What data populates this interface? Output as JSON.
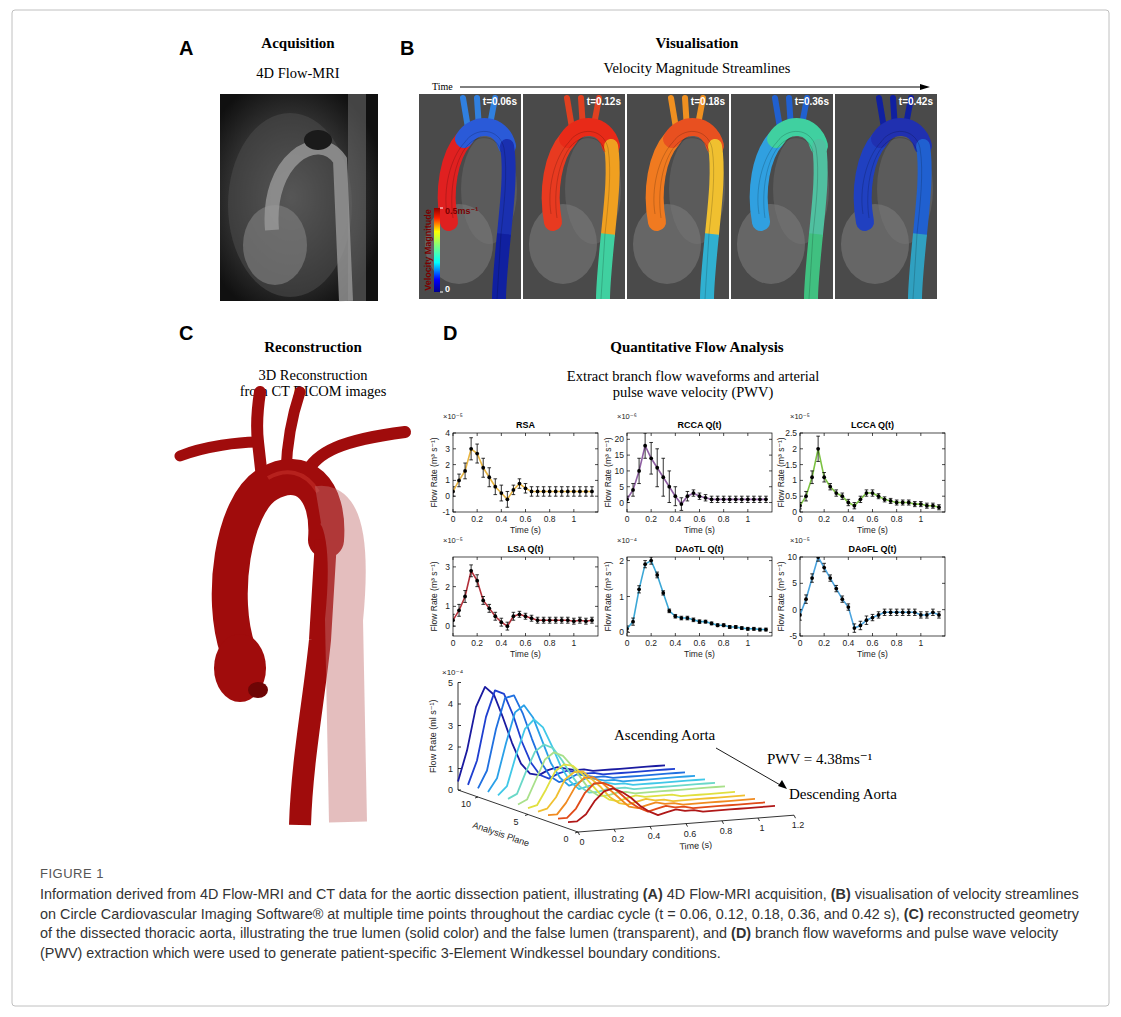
{
  "panels": {
    "a": {
      "letter": "A",
      "title": "Acquisition",
      "subtitle": "4D Flow-MRI"
    },
    "b": {
      "letter": "B",
      "title": "Visualisation",
      "subtitle": "Velocity Magnitude Streamlines",
      "time_label": "Time",
      "frames": [
        "t=0.06s",
        "t=0.12s",
        "t=0.18s",
        "t=0.36s",
        "t=0.42s"
      ],
      "colorbar": {
        "label": "Velocity Magnitude",
        "range": [
          0,
          0.5
        ],
        "ticks": [
          0,
          {
            "value": 0.5,
            "label": "0.5ms⁻¹"
          }
        ]
      }
    },
    "c": {
      "letter": "C",
      "title": "Reconstruction",
      "subtitle_lines": [
        "3D Reconstruction",
        "from CT DICOM images"
      ]
    },
    "d": {
      "letter": "D",
      "title": "Quantitative Flow Analysis",
      "subtitle_lines": [
        "Extract branch flow waveforms and arterial",
        "pulse wave velocity (PWV)"
      ]
    }
  },
  "chart_data": [
    {
      "type": "line",
      "title": "RSA",
      "x_label": "Time (s)",
      "y_label": "Flow Rate (m³ s⁻¹)",
      "y_scale_label": "×10⁻⁵",
      "color": "#e8b542",
      "marker": "circle",
      "x": [
        0,
        0.05,
        0.1,
        0.15,
        0.2,
        0.25,
        0.3,
        0.35,
        0.4,
        0.45,
        0.5,
        0.55,
        0.6,
        0.65,
        0.7,
        0.75,
        0.8,
        0.85,
        0.9,
        0.95,
        1,
        1.05,
        1.1,
        1.15
      ],
      "values": [
        0.3,
        1.0,
        1.6,
        3.0,
        2.7,
        1.8,
        1.2,
        0.6,
        0.2,
        -0.2,
        0.4,
        0.8,
        0.5,
        0.3,
        0.3,
        0.3,
        0.3,
        0.3,
        0.3,
        0.3,
        0.3,
        0.3,
        0.3,
        0.3
      ],
      "errors": [
        0.3,
        0.4,
        0.5,
        0.7,
        0.6,
        0.6,
        0.6,
        0.5,
        0.5,
        0.5,
        0.3,
        0.3,
        0.3,
        0.3,
        0.3,
        0.3,
        0.3,
        0.3,
        0.3,
        0.3,
        0.3,
        0.3,
        0.3,
        0.3
      ],
      "xlim": [
        0,
        1.2
      ],
      "xticks": [
        0,
        0.2,
        0.4,
        0.6,
        0.8,
        1
      ],
      "ylim": [
        -1,
        4
      ],
      "yticks": [
        -1,
        0,
        1,
        2,
        3,
        4
      ]
    },
    {
      "type": "line",
      "title": "RCCA Q(t)",
      "x_label": "Time (s)",
      "y_label": "Flow Rate (m³ s⁻¹)",
      "y_scale_label": "×10⁻⁶",
      "color": "#8e5ea2",
      "marker": "circle",
      "x": [
        0,
        0.05,
        0.1,
        0.15,
        0.2,
        0.25,
        0.3,
        0.35,
        0.4,
        0.45,
        0.5,
        0.55,
        0.6,
        0.65,
        0.7,
        0.75,
        0.8,
        0.85,
        0.9,
        0.95,
        1,
        1.05,
        1.1,
        1.15
      ],
      "values": [
        1,
        4,
        10,
        18,
        14,
        11,
        8,
        5,
        2,
        -0.5,
        2,
        3,
        2,
        1.5,
        1,
        1,
        1,
        1,
        1,
        1,
        1,
        1,
        1,
        1
      ],
      "errors": [
        1,
        2,
        4,
        4,
        5,
        6,
        6,
        5,
        3,
        2,
        1.5,
        1,
        1,
        1,
        1,
        1,
        1,
        1,
        1,
        1,
        1,
        1,
        1,
        1
      ],
      "xlim": [
        0,
        1.2
      ],
      "xticks": [
        0,
        0.2,
        0.4,
        0.6,
        0.8,
        1
      ],
      "ylim": [
        -3,
        22
      ],
      "yticks": [
        0,
        5,
        10,
        15,
        20
      ]
    },
    {
      "type": "line",
      "title": "LCCA Q(t)",
      "x_label": "Time (s)",
      "y_label": "Flow Rate (m³ s⁻¹)",
      "y_scale_label": "×10⁻⁵",
      "color": "#7cc242",
      "marker": "circle",
      "x": [
        0,
        0.05,
        0.1,
        0.15,
        0.2,
        0.25,
        0.3,
        0.35,
        0.4,
        0.45,
        0.5,
        0.55,
        0.6,
        0.65,
        0.7,
        0.75,
        0.8,
        0.85,
        0.9,
        0.95,
        1,
        1.05,
        1.1,
        1.15
      ],
      "values": [
        0.2,
        0.5,
        1.1,
        2.0,
        1.1,
        0.8,
        0.6,
        0.5,
        0.3,
        0.2,
        0.4,
        0.6,
        0.6,
        0.5,
        0.4,
        0.35,
        0.3,
        0.3,
        0.3,
        0.25,
        0.25,
        0.2,
        0.2,
        0.15
      ],
      "errors": [
        0.1,
        0.15,
        0.2,
        0.4,
        0.15,
        0.1,
        0.1,
        0.1,
        0.1,
        0.1,
        0.1,
        0.1,
        0.1,
        0.08,
        0.08,
        0.08,
        0.08,
        0.08,
        0.08,
        0.08,
        0.08,
        0.08,
        0.08,
        0.08
      ],
      "xlim": [
        0,
        1.2
      ],
      "xticks": [
        0,
        0.2,
        0.4,
        0.6,
        0.8,
        1
      ],
      "ylim": [
        0,
        2.5
      ],
      "yticks": [
        0,
        0.5,
        1,
        1.5,
        2,
        2.5
      ]
    },
    {
      "type": "line",
      "title": "LSA Q(t)",
      "x_label": "Time (s)",
      "y_label": "Flow Rate (m³ s⁻¹)",
      "y_scale_label": "×10⁻⁵",
      "color": "#b3303a",
      "marker": "circle",
      "x": [
        0,
        0.05,
        0.1,
        0.15,
        0.2,
        0.25,
        0.3,
        0.35,
        0.4,
        0.45,
        0.5,
        0.55,
        0.6,
        0.65,
        0.7,
        0.75,
        0.8,
        0.85,
        0.9,
        0.95,
        1,
        1.05,
        1.1,
        1.15
      ],
      "values": [
        0.3,
        0.8,
        1.5,
        2.8,
        2.3,
        1.3,
        0.9,
        0.5,
        0.2,
        0,
        0.5,
        0.6,
        0.5,
        0.4,
        0.3,
        0.3,
        0.3,
        0.3,
        0.3,
        0.3,
        0.25,
        0.3,
        0.25,
        0.3
      ],
      "errors": [
        0.3,
        0.3,
        0.3,
        0.3,
        0.3,
        0.2,
        0.2,
        0.2,
        0.2,
        0.2,
        0.2,
        0.15,
        0.15,
        0.15,
        0.15,
        0.15,
        0.15,
        0.15,
        0.15,
        0.15,
        0.15,
        0.15,
        0.15,
        0.15
      ],
      "xlim": [
        0,
        1.2
      ],
      "xticks": [
        0,
        0.2,
        0.4,
        0.6,
        0.8,
        1
      ],
      "ylim": [
        -0.5,
        3.5
      ],
      "yticks": [
        0,
        1,
        2,
        3
      ]
    },
    {
      "type": "line",
      "title": "DAoTL Q(t)",
      "x_label": "Time (s)",
      "y_label": "Flow Rate (m³ s⁻¹)",
      "y_scale_label": "×10⁻⁴",
      "color": "#3ba7d6",
      "marker": "circle",
      "x": [
        0,
        0.05,
        0.1,
        0.15,
        0.2,
        0.25,
        0.3,
        0.35,
        0.4,
        0.45,
        0.5,
        0.55,
        0.6,
        0.65,
        0.7,
        0.75,
        0.8,
        0.85,
        0.9,
        0.95,
        1,
        1.05,
        1.1,
        1.15
      ],
      "values": [
        0.1,
        0.3,
        1.2,
        1.9,
        2.0,
        1.6,
        1.1,
        0.6,
        0.45,
        0.4,
        0.4,
        0.35,
        0.3,
        0.3,
        0.25,
        0.2,
        0.2,
        0.15,
        0.15,
        0.12,
        0.1,
        0.1,
        0.08,
        0.08
      ],
      "errors": [
        0.08,
        0.1,
        0.1,
        0.1,
        0.1,
        0.08,
        0.06,
        0.05,
        0.05,
        0.05,
        0.05,
        0.05,
        0.05,
        0.04,
        0.04,
        0.04,
        0.04,
        0.04,
        0.04,
        0.04,
        0.04,
        0.04,
        0.04,
        0.04
      ],
      "xlim": [
        0,
        1.2
      ],
      "xticks": [
        0,
        0.2,
        0.4,
        0.6,
        0.8,
        1
      ],
      "ylim": [
        -0.1,
        2.1
      ],
      "yticks": [
        0,
        1,
        2
      ]
    },
    {
      "type": "line",
      "title": "DAoFL Q(t)",
      "x_label": "Time (s)",
      "y_label": "Flow Rate (m³ s⁻¹)",
      "y_scale_label": "×10⁻⁵",
      "color": "#4aa3de",
      "marker": "circle",
      "x": [
        0,
        0.05,
        0.1,
        0.15,
        0.2,
        0.25,
        0.3,
        0.35,
        0.4,
        0.45,
        0.5,
        0.55,
        0.6,
        0.65,
        0.7,
        0.75,
        0.8,
        0.85,
        0.9,
        0.95,
        1,
        1.05,
        1.1,
        1.15
      ],
      "values": [
        -1,
        2,
        6,
        10,
        8,
        6,
        4,
        2,
        0.5,
        -3.5,
        -3,
        -2,
        -1.5,
        -1,
        -0.5,
        -0.5,
        -0.5,
        -0.5,
        -0.5,
        -0.5,
        -1,
        -1,
        -0.5,
        -1
      ],
      "errors": [
        1,
        0.8,
        0.8,
        0.8,
        0.8,
        0.6,
        0.6,
        0.6,
        0.6,
        0.8,
        0.8,
        0.8,
        0.6,
        0.6,
        0.6,
        0.6,
        0.6,
        0.6,
        0.6,
        0.6,
        0.6,
        0.6,
        0.6,
        0.6
      ],
      "xlim": [
        0,
        1.2
      ],
      "xticks": [
        0,
        0.2,
        0.4,
        0.6,
        0.8,
        1
      ],
      "ylim": [
        -5,
        10
      ],
      "yticks": [
        -5,
        0,
        5,
        10
      ]
    },
    {
      "type": "waterfall",
      "x_label": "Time (s)",
      "y_label": "Flow Rate (ml s⁻¹)",
      "y_scale_label": "×10⁻⁴",
      "plane_label": "Analysis Plane",
      "annotations": [
        "Ascending Aorta",
        "PWV = 4.38ms⁻¹",
        "Descending Aorta"
      ],
      "x": [
        0,
        0.05,
        0.1,
        0.15,
        0.2,
        0.25,
        0.3,
        0.35,
        0.4,
        0.45,
        0.5,
        0.55,
        0.6,
        0.65,
        0.7,
        0.75,
        0.8,
        0.85,
        0.9,
        0.95,
        1,
        1.05,
        1.1,
        1.15
      ],
      "xlim": [
        0,
        1.2
      ],
      "xticks": [
        0,
        0.2,
        0.4,
        0.6,
        0.8,
        1,
        1.2
      ],
      "ylim": [
        0,
        5
      ],
      "yticks": [
        0,
        1,
        2,
        3,
        4,
        5
      ],
      "plane_lim": [
        0,
        12
      ],
      "plane_ticks": [
        0,
        5,
        10
      ],
      "series": [
        {
          "plane": 12,
          "color": "#1a1aa0",
          "values": [
            0.4,
            1.8,
            3.8,
            4.7,
            4.3,
            3.2,
            2.0,
            1.0,
            0.5,
            0.4,
            0.6,
            0.7,
            0.6,
            0.5,
            0.5,
            0.4,
            0.4,
            0.4,
            0.4,
            0.4,
            0.4,
            0.4,
            0.4,
            0.4
          ]
        },
        {
          "plane": 11,
          "color": "#1f3fd0",
          "values": [
            0.4,
            1.5,
            3.5,
            4.7,
            4.5,
            3.5,
            2.2,
            1.2,
            0.6,
            0.4,
            0.6,
            0.7,
            0.6,
            0.5,
            0.5,
            0.4,
            0.4,
            0.4,
            0.4,
            0.4,
            0.4,
            0.4,
            0.4,
            0.4
          ]
        },
        {
          "plane": 10,
          "color": "#2070e0",
          "values": [
            0.4,
            1.2,
            3.1,
            4.5,
            4.6,
            3.7,
            2.5,
            1.4,
            0.7,
            0.4,
            0.5,
            0.7,
            0.6,
            0.5,
            0.5,
            0.4,
            0.4,
            0.4,
            0.4,
            0.4,
            0.4,
            0.4,
            0.4,
            0.4
          ]
        },
        {
          "plane": 9,
          "color": "#2aa0e8",
          "values": [
            0.4,
            1.0,
            2.6,
            4.0,
            4.3,
            3.7,
            2.6,
            1.5,
            0.8,
            0.4,
            0.5,
            0.7,
            0.6,
            0.5,
            0.5,
            0.4,
            0.4,
            0.4,
            0.4,
            0.4,
            0.4,
            0.4,
            0.4,
            0.4
          ]
        },
        {
          "plane": 8,
          "color": "#40c8e8",
          "values": [
            0.4,
            0.8,
            2.2,
            3.4,
            3.8,
            3.4,
            2.5,
            1.5,
            0.8,
            0.4,
            0.5,
            0.6,
            0.6,
            0.5,
            0.5,
            0.4,
            0.4,
            0.4,
            0.4,
            0.4,
            0.4,
            0.4,
            0.4,
            0.4
          ]
        },
        {
          "plane": 7,
          "color": "#6ad8c8",
          "values": [
            0.4,
            0.6,
            1.6,
            2.5,
            2.8,
            2.6,
            2.0,
            1.3,
            0.7,
            0.4,
            0.4,
            0.5,
            0.5,
            0.5,
            0.4,
            0.4,
            0.4,
            0.4,
            0.4,
            0.4,
            0.4,
            0.4,
            0.4,
            0.4
          ]
        },
        {
          "plane": 6,
          "color": "#a8e08a",
          "values": [
            0.3,
            0.5,
            1.4,
            2.3,
            2.6,
            2.4,
            1.9,
            1.3,
            0.7,
            0.4,
            0.4,
            0.5,
            0.5,
            0.4,
            0.4,
            0.4,
            0.4,
            0.4,
            0.4,
            0.4,
            0.4,
            0.4,
            0.4,
            0.4
          ]
        },
        {
          "plane": 5,
          "color": "#e0e040",
          "values": [
            0.3,
            0.4,
            1.1,
            1.9,
            2.2,
            2.1,
            1.7,
            1.2,
            0.7,
            0.4,
            0.3,
            0.4,
            0.5,
            0.4,
            0.4,
            0.4,
            0.4,
            0.3,
            0.3,
            0.3,
            0.3,
            0.3,
            0.3,
            0.3
          ]
        },
        {
          "plane": 4,
          "color": "#f0c030",
          "values": [
            0.3,
            0.4,
            0.9,
            1.7,
            2.0,
            2.0,
            1.6,
            1.2,
            0.7,
            0.4,
            0.3,
            0.4,
            0.5,
            0.4,
            0.4,
            0.3,
            0.3,
            0.3,
            0.3,
            0.3,
            0.3,
            0.3,
            0.3,
            0.3
          ]
        },
        {
          "plane": 3,
          "color": "#f08a20",
          "values": [
            0.3,
            0.3,
            0.8,
            1.5,
            1.9,
            1.9,
            1.6,
            1.2,
            0.8,
            0.4,
            0.3,
            0.4,
            0.5,
            0.4,
            0.4,
            0.3,
            0.3,
            0.3,
            0.3,
            0.3,
            0.3,
            0.3,
            0.3,
            0.3
          ]
        },
        {
          "plane": 2,
          "color": "#e04a18",
          "values": [
            0.3,
            0.3,
            0.7,
            1.4,
            1.8,
            1.8,
            1.6,
            1.2,
            0.8,
            0.5,
            0.3,
            0.4,
            0.5,
            0.4,
            0.4,
            0.3,
            0.3,
            0.3,
            0.3,
            0.3,
            0.3,
            0.3,
            0.3,
            0.3
          ]
        },
        {
          "plane": 1,
          "color": "#b01818",
          "values": [
            0.3,
            0.3,
            0.6,
            1.2,
            1.6,
            1.7,
            1.5,
            1.2,
            0.8,
            0.5,
            0.3,
            0.4,
            0.5,
            0.4,
            0.4,
            0.3,
            0.3,
            0.3,
            0.3,
            0.3,
            0.3,
            0.3,
            0.3,
            0.3
          ]
        }
      ]
    }
  ],
  "caption": {
    "label": "FIGURE 1",
    "text": "Information derived from 4D Flow-MRI and CT data for the aortic dissection patient, illustrating (A) 4D Flow-MRI acquisition, (B) visualisation of velocity streamlines on Circle Cardiovascular Imaging Software® at multiple time points throughout the cardiac cycle (t = 0.06, 0.12, 0.18, 0.36, and 0.42 s), (C) reconstructed geometry of the dissected thoracic aorta, illustrating the true lumen (solid color) and the false lumen (transparent), and (D) branch flow waveforms and pulse wave velocity (PWV) extraction which were used to generate patient-specific 3-Element Windkessel boundary conditions."
  }
}
